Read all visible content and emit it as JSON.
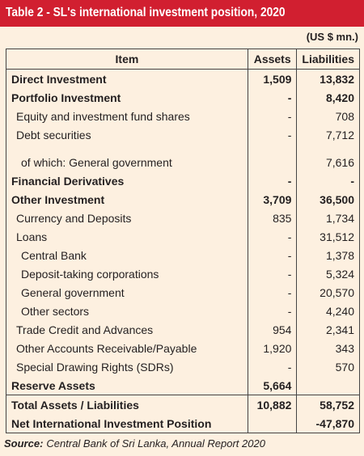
{
  "header": {
    "title": "Table 2 - SL's international investment position, 2020",
    "unit": "(US $ mn.)"
  },
  "table": {
    "columns": [
      "Item",
      "Assets",
      "Liabilities"
    ],
    "rows": [
      [
        "Direct Investment",
        "1,509",
        "13,832"
      ],
      [
        "Portfolio Investment",
        "-",
        "8,420"
      ],
      [
        "Equity and investment fund shares",
        "-",
        "708"
      ],
      [
        "Debt securities",
        "-",
        "7,712"
      ],
      [
        "of which: General government",
        null,
        "7,616"
      ],
      [
        "Financial Derivatives",
        "-",
        "-"
      ],
      [
        "Other Investment",
        "3,709",
        "36,500"
      ],
      [
        "Currency and Deposits",
        "835",
        "1,734"
      ],
      [
        "Loans",
        "-",
        "31,512"
      ],
      [
        "Central Bank",
        "-",
        "1,378"
      ],
      [
        "Deposit-taking corporations",
        "-",
        "5,324"
      ],
      [
        "General government",
        "-",
        "20,570"
      ],
      [
        "Other sectors",
        "-",
        "4,240"
      ],
      [
        "Trade Credit and Advances",
        "954",
        "2,341"
      ],
      [
        "Other Accounts Receivable/Payable",
        "1,920",
        "343"
      ],
      [
        "Special Drawing Rights (SDRs)",
        "-",
        "570"
      ],
      [
        "Reserve Assets",
        "5,664",
        null
      ]
    ],
    "totals": [
      [
        "Total Assets / Liabilities",
        "10,882",
        "58,752"
      ],
      [
        "Net International Investment Position",
        null,
        "-47,870"
      ]
    ]
  },
  "footer": {
    "source_label": "Source:",
    "source": "Central Bank of Sri Lanka, Annual Report 2020"
  }
}
